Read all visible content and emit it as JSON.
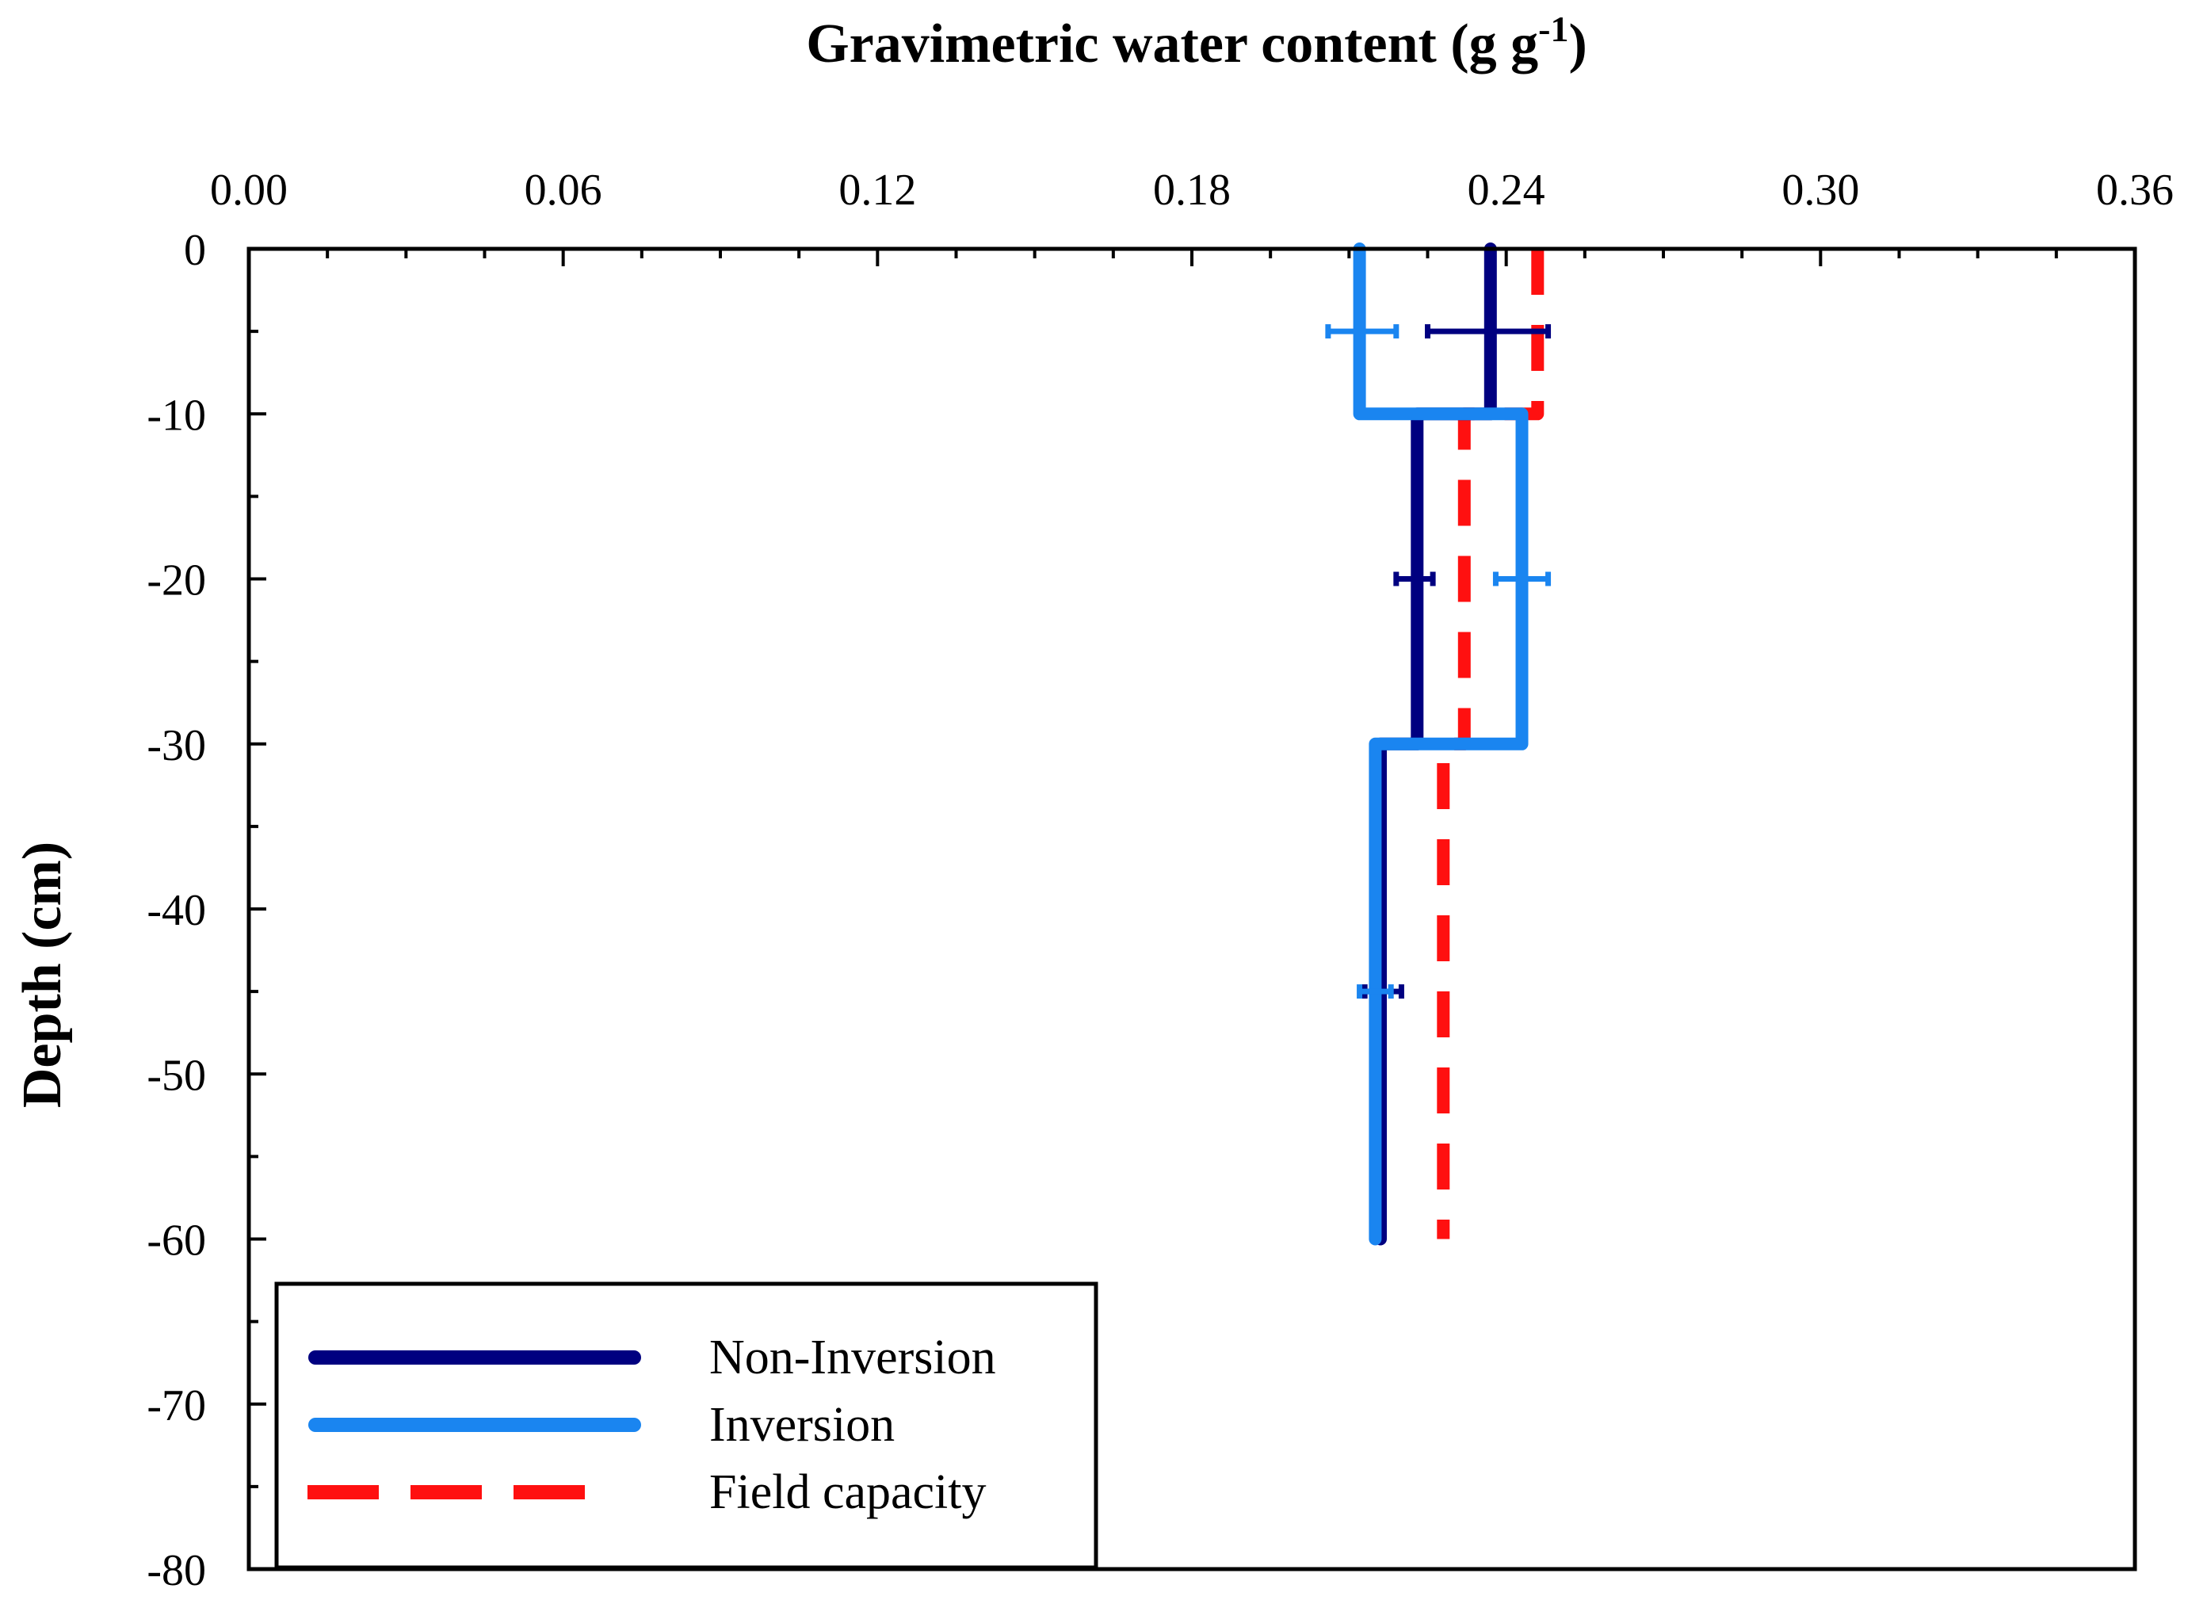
{
  "chart_data": {
    "type": "line",
    "title": "Gravimetric water content (g g-1)",
    "title_main": "Gravimetric water content (g g",
    "title_sup": "-1",
    "title_close": ")",
    "xlabel": "Gravimetric water content (g g-1)",
    "ylabel": "Depth (cm)",
    "xlim": [
      0.0,
      0.36
    ],
    "ylim": [
      -80,
      0
    ],
    "x_ticks": [
      0.0,
      0.06,
      0.12,
      0.18,
      0.24,
      0.3,
      0.36
    ],
    "x_tick_labels": [
      "0.00",
      "0.06",
      "0.12",
      "0.18",
      "0.24",
      "0.30",
      "0.36"
    ],
    "y_ticks": [
      0,
      -10,
      -20,
      -30,
      -40,
      -50,
      -60,
      -70,
      -80
    ],
    "y_tick_labels": [
      "0",
      "-10",
      "-20",
      "-30",
      "-40",
      "-50",
      "-60",
      "-70",
      "-80"
    ],
    "x_axis_position": "top",
    "grid": false,
    "legend_position": "bottom-left",
    "series": [
      {
        "name": "Non-Inversion",
        "color": "#000080",
        "style": "solid",
        "layers": [
          {
            "top": 0,
            "bottom": -10,
            "value": 0.237
          },
          {
            "top": -10,
            "bottom": -30,
            "value": 0.223
          },
          {
            "top": -30,
            "bottom": -60,
            "value": 0.216
          }
        ],
        "error_bars": [
          {
            "depth": -5,
            "low": 0.225,
            "high": 0.248
          },
          {
            "depth": -20,
            "low": 0.219,
            "high": 0.226
          },
          {
            "depth": -45,
            "low": 0.213,
            "high": 0.22
          }
        ]
      },
      {
        "name": "Inversion",
        "color": "#1a85f0",
        "style": "solid",
        "layers": [
          {
            "top": 0,
            "bottom": -10,
            "value": 0.212
          },
          {
            "top": -10,
            "bottom": -30,
            "value": 0.243
          },
          {
            "top": -30,
            "bottom": -60,
            "value": 0.215
          }
        ],
        "error_bars": [
          {
            "depth": -5,
            "low": 0.206,
            "high": 0.219
          },
          {
            "depth": -20,
            "low": 0.238,
            "high": 0.248
          },
          {
            "depth": -45,
            "low": 0.212,
            "high": 0.218
          }
        ]
      },
      {
        "name": "Field capacity",
        "color": "#ff1010",
        "style": "dashed",
        "layers": [
          {
            "top": 0,
            "bottom": -10,
            "value": 0.246
          },
          {
            "top": -10,
            "bottom": -30,
            "value": 0.232
          },
          {
            "top": -30,
            "bottom": -60,
            "value": 0.228
          }
        ],
        "error_bars": []
      }
    ]
  }
}
